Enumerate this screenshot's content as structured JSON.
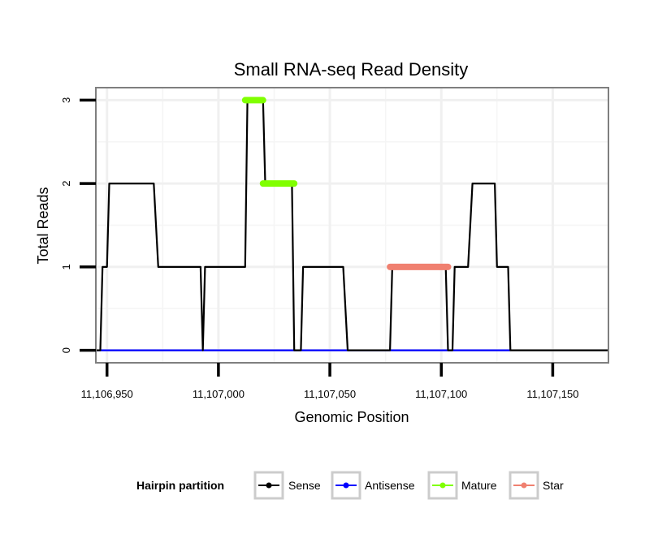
{
  "chart_data": {
    "type": "line",
    "title": "Small RNA-seq Read Density",
    "xlabel": "Genomic Position",
    "ylabel": "Total Reads",
    "xlim": [
      11106945,
      11107175
    ],
    "ylim": [
      -0.15,
      3.15
    ],
    "x_ticks": [
      11106950,
      11107000,
      11107050,
      11107100,
      11107150
    ],
    "x_tick_labels": [
      "11,106,950",
      "11,107,000",
      "11,107,050",
      "11,107,100",
      "11,107,150"
    ],
    "y_ticks": [
      0,
      1,
      2,
      3
    ],
    "y_tick_labels": [
      "0",
      "1",
      "2",
      "3"
    ],
    "grid": true,
    "legend": {
      "title": "Hairpin partition",
      "position": "bottom",
      "entries": [
        "Sense",
        "Antisense",
        "Mature",
        "Star"
      ]
    },
    "series": [
      {
        "name": "Sense",
        "color": "#000000",
        "points": [
          [
            11106945,
            0
          ],
          [
            11106947,
            0
          ],
          [
            11106948,
            1
          ],
          [
            11106950,
            1
          ],
          [
            11106951,
            2
          ],
          [
            11106971,
            2
          ],
          [
            11106973,
            1
          ],
          [
            11106992,
            1
          ],
          [
            11106993,
            0
          ],
          [
            11106994,
            1
          ],
          [
            11107012,
            1
          ],
          [
            11107013,
            3
          ],
          [
            11107020,
            3
          ],
          [
            11107021,
            2
          ],
          [
            11107033,
            2
          ],
          [
            11107034,
            0
          ],
          [
            11107037,
            0
          ],
          [
            11107038,
            1
          ],
          [
            11107056,
            1
          ],
          [
            11107058,
            0
          ],
          [
            11107077,
            0
          ],
          [
            11107078,
            1
          ],
          [
            11107102,
            1
          ],
          [
            11107103,
            0
          ],
          [
            11107105,
            0
          ],
          [
            11107106,
            1
          ],
          [
            11107112,
            1
          ],
          [
            11107114,
            2
          ],
          [
            11107124,
            2
          ],
          [
            11107125,
            1
          ],
          [
            11107130,
            1
          ],
          [
            11107131,
            0
          ],
          [
            11107175,
            0
          ]
        ]
      },
      {
        "name": "Antisense",
        "color": "#0000ff",
        "points": [
          [
            11106945,
            0
          ],
          [
            11107131,
            0
          ]
        ]
      },
      {
        "name": "Mature",
        "color": "#80ff00",
        "segments": [
          {
            "x": [
              11107012,
              11107020
            ],
            "y": 3
          },
          {
            "x": [
              11107020,
              11107034
            ],
            "y": 2
          }
        ]
      },
      {
        "name": "Star",
        "color": "#f08070",
        "segments": [
          {
            "x": [
              11107077,
              11107103
            ],
            "y": 1
          }
        ]
      }
    ]
  }
}
